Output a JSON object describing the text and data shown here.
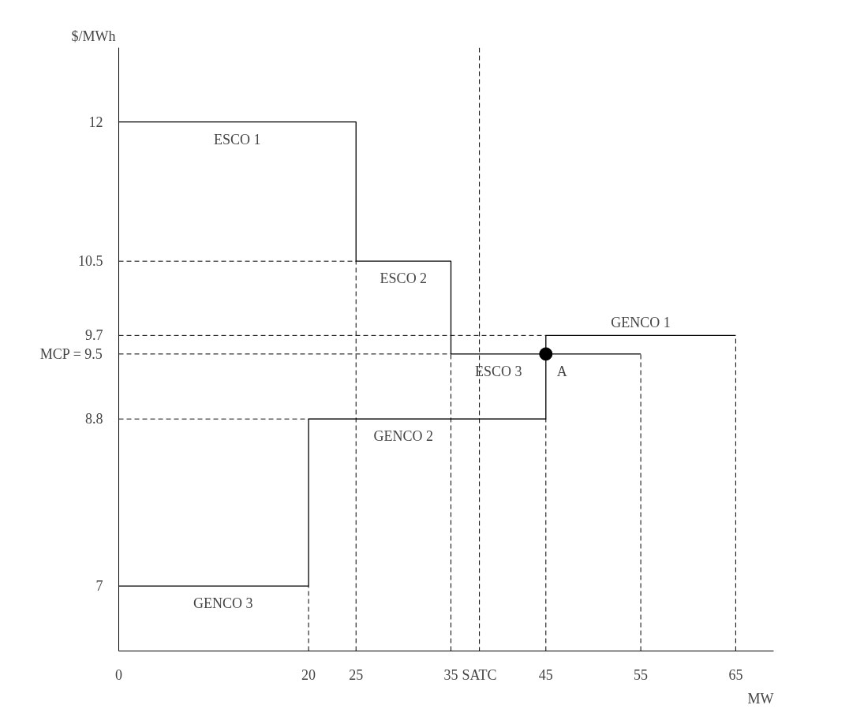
{
  "chart_data": {
    "type": "step",
    "xlabel": "MW",
    "ylabel": "$/MWh",
    "xlim": [
      0,
      69
    ],
    "ylim": [
      6.3,
      12.8
    ],
    "xticks": [
      0,
      20,
      25,
      35,
      {
        "value": 38,
        "label": "SATC"
      },
      45,
      55,
      65
    ],
    "yticks": [
      7,
      8.8,
      {
        "value": 9.5,
        "label": "MCP = 9.5"
      },
      9.7,
      10.5,
      12
    ],
    "grid": false,
    "marker": "none",
    "series": [
      {
        "color": "#000000",
        "line_style": "solid",
        "x": [
          0,
          25,
          35,
          55
        ],
        "values": [
          12,
          10.5,
          9.5,
          9.5
        ]
      },
      {
        "color": "#000000",
        "line_style": "solid",
        "x": [
          0,
          20,
          45,
          65
        ],
        "values": [
          7,
          8.8,
          9.7,
          9.7
        ]
      },
      {
        "type": "line",
        "color": "#000000",
        "line_style": "dashed",
        "x": [
          0,
          25
        ],
        "values": [
          10.5,
          10.5
        ]
      },
      {
        "type": "line",
        "color": "#000000",
        "line_style": "dashed",
        "x": [
          0,
          45
        ],
        "values": [
          9.7,
          9.7
        ]
      },
      {
        "type": "line",
        "color": "#000000",
        "line_style": "dashed",
        "x": [
          0,
          35
        ],
        "values": [
          9.5,
          9.5
        ]
      },
      {
        "type": "line",
        "color": "#000000",
        "line_style": "dashed",
        "x": [
          0,
          20
        ],
        "values": [
          8.8,
          8.8
        ]
      },
      {
        "type": "line",
        "color": "#000000",
        "line_style": "dashed",
        "x": [
          20,
          20
        ],
        "values": [
          6.3,
          7
        ]
      },
      {
        "type": "line",
        "color": "#000000",
        "line_style": "dashed",
        "x": [
          25,
          25
        ],
        "values": [
          6.3,
          10.5
        ]
      },
      {
        "type": "line",
        "color": "#000000",
        "line_style": "dashed",
        "x": [
          35,
          35
        ],
        "values": [
          6.3,
          9.5
        ]
      },
      {
        "type": "line",
        "color": "#000000",
        "line_style": "dashed",
        "x": [
          45,
          45
        ],
        "values": [
          6.3,
          8.8
        ]
      },
      {
        "type": "line",
        "color": "#000000",
        "line_style": "dashed",
        "x": [
          55,
          55
        ],
        "values": [
          6.3,
          9.5
        ]
      },
      {
        "type": "line",
        "color": "#000000",
        "line_style": "dashed",
        "x": [
          65,
          65
        ],
        "values": [
          6.3,
          9.7
        ]
      },
      {
        "type": "scatter",
        "color": "#000000",
        "marker": "circle",
        "x": [
          45
        ],
        "values": [
          9.5
        ]
      }
    ],
    "ref_lines": [
      {
        "axis": "x",
        "value": 38,
        "color": "#000000",
        "line_style": "dashed"
      }
    ],
    "annotations": [
      {
        "text": "ESCO 1",
        "x": 12.5,
        "y": 12
      },
      {
        "text": "ESCO 2",
        "x": 30,
        "y": 10.5
      },
      {
        "text": "ESCO 3",
        "x": 40,
        "y": 9.5
      },
      {
        "text": "GENCO 1",
        "x": 55,
        "y": 9.7
      },
      {
        "text": "GENCO 2",
        "x": 30,
        "y": 8.8
      },
      {
        "text": "GENCO 3",
        "x": 11,
        "y": 7
      },
      {
        "text": "A",
        "x": 45,
        "y": 9.5
      }
    ]
  }
}
